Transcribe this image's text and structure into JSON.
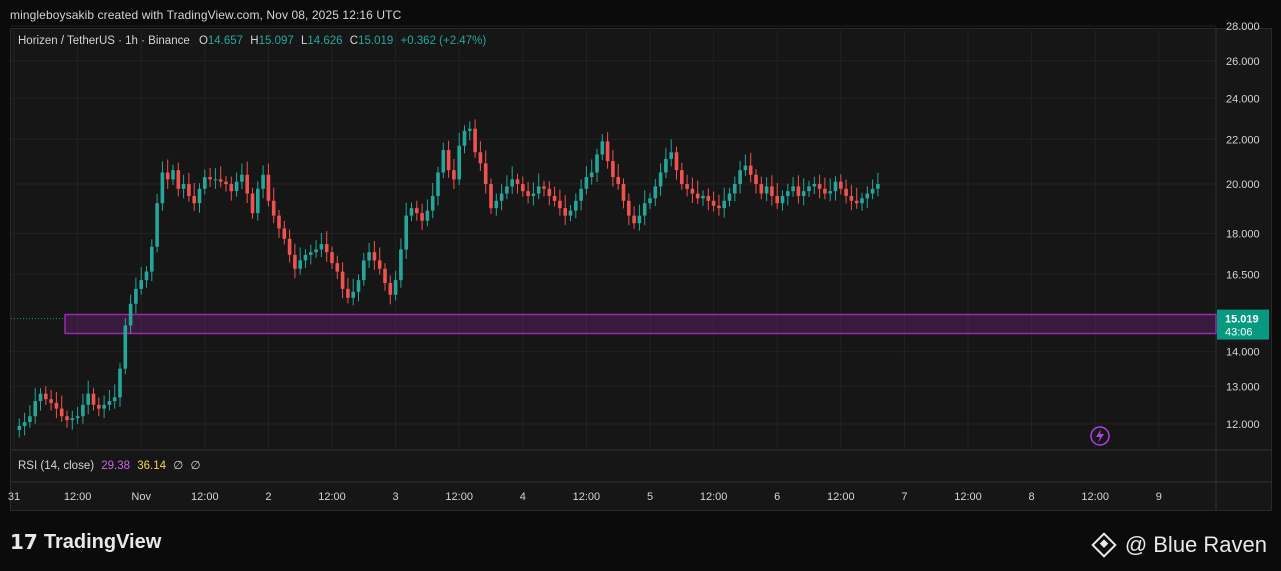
{
  "header": {
    "creator_text": "mingleboysakib created with TradingView.com, Nov 08, 2025 12:16 UTC"
  },
  "legend": {
    "symbol": "Horizen / TetherUS · 1h · Binance",
    "o_label": "O",
    "o_value": "14.657",
    "h_label": "H",
    "h_value": "15.097",
    "l_label": "L",
    "l_value": "14.626",
    "c_label": "C",
    "c_value": "15.019",
    "change": "+0.362 (+2.47%)"
  },
  "rsi": {
    "label": "RSI (14, close)",
    "value1": "29.38",
    "value2": "36.14",
    "value3": "∅",
    "value4": "∅"
  },
  "price_tag": {
    "price": "15.019",
    "countdown": "43:06"
  },
  "colors": {
    "up": "#26a69a",
    "down": "#ef5350",
    "zone": "#9c27b0",
    "background": "#161616",
    "price_tag": "#089981"
  },
  "icons": {
    "bolt": "lightning-icon"
  },
  "footer": {
    "brand": "TradingView",
    "watermark": "@ Blue Raven"
  },
  "chart_data": {
    "type": "candlestick",
    "y_ticks": [
      "28.000",
      "26.000",
      "24.000",
      "22.000",
      "20.000",
      "18.000",
      "16.500",
      "14.000",
      "13.000",
      "12.000"
    ],
    "y_tick_values": [
      28,
      26,
      24,
      22,
      20,
      18,
      16.5,
      14,
      13,
      12
    ],
    "y_scale": "log",
    "x_ticks": [
      {
        "label": "31",
        "i": 0
      },
      {
        "label": "12:00",
        "i": 12
      },
      {
        "label": "Nov",
        "i": 24
      },
      {
        "label": "12:00",
        "i": 36
      },
      {
        "label": "2",
        "i": 48
      },
      {
        "label": "12:00",
        "i": 60
      },
      {
        "label": "3",
        "i": 72
      },
      {
        "label": "12:00",
        "i": 84
      },
      {
        "label": "4",
        "i": 96
      },
      {
        "label": "12:00",
        "i": 108
      },
      {
        "label": "5",
        "i": 120
      },
      {
        "label": "12:00",
        "i": 132
      },
      {
        "label": "6",
        "i": 144
      },
      {
        "label": "12:00",
        "i": 156
      },
      {
        "label": "7",
        "i": 168
      },
      {
        "label": "12:00",
        "i": 180
      },
      {
        "label": "8",
        "i": 192
      },
      {
        "label": "12:00",
        "i": 204
      },
      {
        "label": "9",
        "i": 216
      }
    ],
    "zone": {
      "low": 14.55,
      "high": 15.15
    },
    "last_price": 15.019,
    "closes": [
      11.85,
      11.95,
      12.05,
      12.2,
      12.6,
      12.8,
      12.65,
      12.55,
      12.4,
      12.2,
      12.1,
      12.15,
      12.2,
      12.5,
      12.8,
      12.5,
      12.4,
      12.5,
      12.6,
      12.7,
      13.5,
      14.8,
      15.5,
      16.0,
      16.3,
      16.6,
      17.5,
      19.2,
      20.5,
      20.2,
      20.6,
      19.8,
      20.0,
      19.5,
      19.2,
      19.8,
      20.3,
      20.2,
      20.2,
      20.1,
      20.0,
      19.7,
      20.1,
      20.4,
      19.6,
      18.8,
      19.8,
      20.4,
      19.3,
      18.7,
      18.2,
      17.8,
      17.2,
      16.7,
      17.0,
      17.2,
      17.3,
      17.4,
      17.6,
      17.3,
      16.9,
      16.6,
      16.0,
      15.7,
      15.9,
      16.3,
      17.0,
      17.3,
      17.0,
      16.7,
      16.2,
      15.8,
      16.3,
      17.4,
      18.7,
      19.0,
      18.8,
      18.5,
      18.9,
      19.5,
      20.5,
      21.5,
      20.6,
      20.2,
      21.7,
      22.4,
      22.5,
      21.4,
      20.9,
      20.0,
      19.0,
      19.3,
      19.6,
      19.9,
      20.2,
      20.0,
      19.7,
      19.5,
      19.6,
      19.9,
      19.8,
      19.5,
      19.3,
      19.0,
      18.7,
      18.9,
      19.3,
      19.8,
      20.3,
      20.5,
      21.3,
      21.9,
      21.0,
      20.3,
      20.0,
      19.3,
      18.7,
      18.4,
      18.7,
      19.2,
      19.4,
      19.9,
      20.5,
      21.1,
      21.4,
      20.6,
      20.0,
      19.8,
      19.6,
      19.4,
      19.5,
      19.3,
      19.1,
      19.0,
      19.3,
      19.6,
      20.0,
      20.6,
      20.8,
      20.4,
      20.0,
      19.6,
      19.9,
      19.5,
      19.2,
      19.5,
      19.7,
      19.9,
      19.5,
      19.7,
      19.9,
      20.0,
      19.8,
      19.6,
      19.7,
      20.1,
      19.8,
      19.5,
      19.3,
      19.2,
      19.4,
      19.6,
      19.8,
      20.0
    ],
    "series_note": ""
  }
}
